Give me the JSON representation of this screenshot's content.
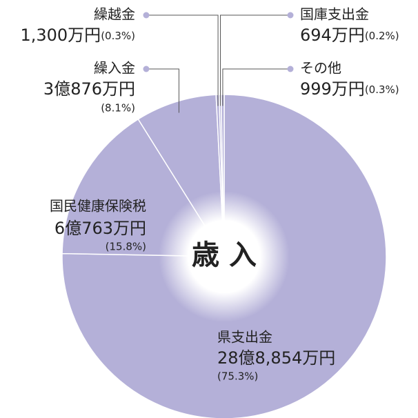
{
  "chart_data": {
    "type": "pie",
    "center_label": "歳 入",
    "categories": [
      "県支出金",
      "国民健康保険税",
      "繰入金",
      "繰越金",
      "国庫支出金",
      "その他"
    ],
    "amounts": [
      "28億8,854万円",
      "6億763万円",
      "3億876万円",
      "1,300万円",
      "694万円",
      "999万円"
    ],
    "values": [
      75.3,
      15.8,
      8.1,
      0.3,
      0.2,
      0.3
    ],
    "value_labels": [
      "(75.3%)",
      "(15.8%)",
      "(8.1%)",
      "(0.3%)",
      "(0.2%)",
      "(0.3%)"
    ],
    "color": "#b4b0d8"
  }
}
